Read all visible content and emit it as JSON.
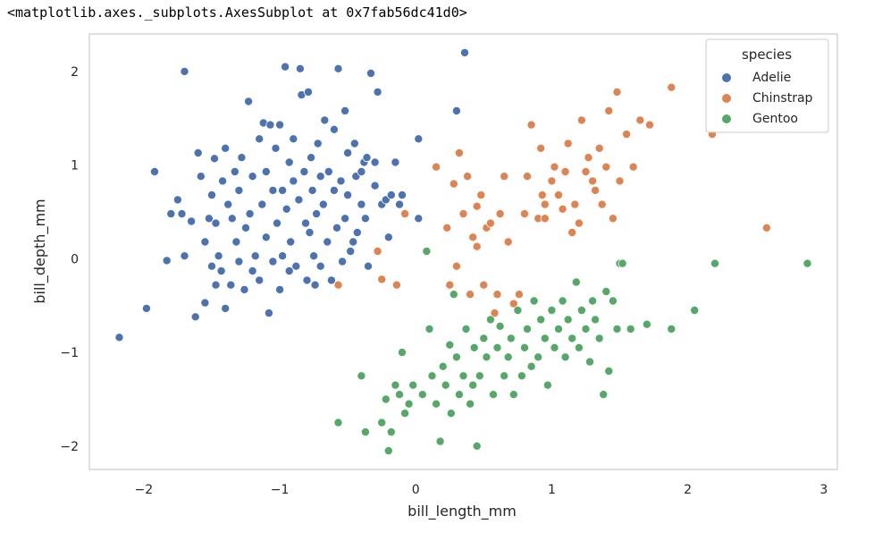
{
  "output_repr": "<matplotlib.axes._subplots.AxesSubplot at 0x7fab56dc41d0>",
  "chart_data": {
    "type": "scatter",
    "xlabel": "bill_length_mm",
    "ylabel": "bill_depth_mm",
    "xlim": [
      -2.4,
      3.1
    ],
    "ylim": [
      -2.25,
      2.4
    ],
    "xticks": [
      -2,
      -1,
      0,
      1,
      2,
      3
    ],
    "yticks": [
      -2,
      -1,
      0,
      1,
      2
    ],
    "xtick_labels": [
      "−2",
      "−1",
      "0",
      "1",
      "2",
      "3"
    ],
    "ytick_labels": [
      "−2",
      "−1",
      "0",
      "1",
      "2"
    ],
    "grid": false,
    "legend": {
      "title": "species",
      "placement": "top-right"
    },
    "colors": {
      "Adelie": "#4c72b0",
      "Chinstrap": "#dd8452",
      "Gentoo": "#55a868",
      "frame": "#cccccc"
    },
    "series": [
      {
        "name": "Adelie",
        "points": [
          [
            -2.18,
            -0.84
          ],
          [
            -1.98,
            -0.53
          ],
          [
            -1.92,
            0.93
          ],
          [
            -1.83,
            -0.02
          ],
          [
            -1.8,
            0.48
          ],
          [
            -1.75,
            0.63
          ],
          [
            -1.72,
            0.48
          ],
          [
            -1.7,
            2.0
          ],
          [
            -1.7,
            0.03
          ],
          [
            -1.65,
            0.4
          ],
          [
            -1.62,
            -0.62
          ],
          [
            -1.6,
            1.13
          ],
          [
            -1.58,
            0.88
          ],
          [
            -1.55,
            0.18
          ],
          [
            -1.55,
            -0.47
          ],
          [
            -1.52,
            0.43
          ],
          [
            -1.5,
            -0.08
          ],
          [
            -1.5,
            0.68
          ],
          [
            -1.48,
            1.07
          ],
          [
            -1.47,
            -0.28
          ],
          [
            -1.47,
            0.38
          ],
          [
            -1.45,
            0.03
          ],
          [
            -1.43,
            -0.13
          ],
          [
            -1.42,
            0.83
          ],
          [
            -1.4,
            1.18
          ],
          [
            -1.4,
            -0.53
          ],
          [
            -1.38,
            0.58
          ],
          [
            -1.36,
            -0.28
          ],
          [
            -1.35,
            0.43
          ],
          [
            -1.33,
            0.93
          ],
          [
            -1.32,
            0.18
          ],
          [
            -1.3,
            -0.03
          ],
          [
            -1.3,
            0.73
          ],
          [
            -1.28,
            1.08
          ],
          [
            -1.26,
            -0.33
          ],
          [
            -1.25,
            0.33
          ],
          [
            -1.23,
            1.68
          ],
          [
            -1.22,
            0.48
          ],
          [
            -1.2,
            0.88
          ],
          [
            -1.2,
            -0.13
          ],
          [
            -1.18,
            0.03
          ],
          [
            -1.15,
            -0.23
          ],
          [
            -1.15,
            1.28
          ],
          [
            -1.13,
            0.58
          ],
          [
            -1.12,
            1.45
          ],
          [
            -1.1,
            0.23
          ],
          [
            -1.1,
            0.93
          ],
          [
            -1.08,
            -0.58
          ],
          [
            -1.07,
            1.43
          ],
          [
            -1.05,
            0.73
          ],
          [
            -1.05,
            -0.03
          ],
          [
            -1.03,
            1.18
          ],
          [
            -1.02,
            0.38
          ],
          [
            -1.0,
            -0.33
          ],
          [
            -1.0,
            1.43
          ],
          [
            -0.98,
            0.73
          ],
          [
            -0.98,
            0.03
          ],
          [
            -0.96,
            2.05
          ],
          [
            -0.95,
            0.53
          ],
          [
            -0.93,
            1.03
          ],
          [
            -0.93,
            -0.13
          ],
          [
            -0.92,
            0.18
          ],
          [
            -0.9,
            0.83
          ],
          [
            -0.9,
            1.28
          ],
          [
            -0.88,
            -0.08
          ],
          [
            -0.86,
            0.63
          ],
          [
            -0.85,
            2.03
          ],
          [
            -0.84,
            1.75
          ],
          [
            -0.82,
            0.93
          ],
          [
            -0.81,
            0.38
          ],
          [
            -0.8,
            -0.23
          ],
          [
            -0.79,
            1.78
          ],
          [
            -0.78,
            0.28
          ],
          [
            -0.77,
            1.08
          ],
          [
            -0.76,
            0.73
          ],
          [
            -0.75,
            0.03
          ],
          [
            -0.74,
            -0.28
          ],
          [
            -0.73,
            0.48
          ],
          [
            -0.72,
            1.23
          ],
          [
            -0.7,
            0.88
          ],
          [
            -0.7,
            -0.08
          ],
          [
            -0.68,
            0.58
          ],
          [
            -0.67,
            1.48
          ],
          [
            -0.65,
            0.18
          ],
          [
            -0.64,
            0.93
          ],
          [
            -0.62,
            -0.23
          ],
          [
            -0.6,
            0.73
          ],
          [
            -0.6,
            1.38
          ],
          [
            -0.58,
            0.33
          ],
          [
            -0.57,
            2.03
          ],
          [
            -0.55,
            0.83
          ],
          [
            -0.54,
            -0.03
          ],
          [
            -0.52,
            1.58
          ],
          [
            -0.52,
            0.43
          ],
          [
            -0.5,
            1.13
          ],
          [
            -0.5,
            0.68
          ],
          [
            -0.48,
            0.08
          ],
          [
            -0.46,
            0.18
          ],
          [
            -0.45,
            1.23
          ],
          [
            -0.44,
            0.88
          ],
          [
            -0.43,
            0.28
          ],
          [
            -0.4,
            0.58
          ],
          [
            -0.4,
            0.93
          ],
          [
            -0.38,
            1.03
          ],
          [
            -0.37,
            0.43
          ],
          [
            -0.36,
            1.08
          ],
          [
            -0.35,
            -0.08
          ],
          [
            -0.33,
            1.98
          ],
          [
            -0.3,
            0.78
          ],
          [
            -0.3,
            1.03
          ],
          [
            -0.28,
            1.78
          ],
          [
            -0.25,
            0.58
          ],
          [
            -0.22,
            0.63
          ],
          [
            -0.2,
            0.23
          ],
          [
            -0.18,
            0.68
          ],
          [
            -0.15,
            1.03
          ],
          [
            -0.12,
            0.58
          ],
          [
            -0.1,
            0.68
          ],
          [
            0.02,
            1.28
          ],
          [
            0.02,
            0.43
          ],
          [
            0.3,
            1.58
          ],
          [
            0.36,
            2.2
          ]
        ]
      },
      {
        "name": "Chinstrap",
        "points": [
          [
            -0.57,
            -0.28
          ],
          [
            -0.28,
            0.08
          ],
          [
            -0.25,
            -0.22
          ],
          [
            -0.14,
            -0.28
          ],
          [
            -0.08,
            0.48
          ],
          [
            0.15,
            0.98
          ],
          [
            0.23,
            0.33
          ],
          [
            0.25,
            -0.28
          ],
          [
            0.28,
            0.8
          ],
          [
            0.3,
            -0.08
          ],
          [
            0.32,
            1.13
          ],
          [
            0.35,
            0.48
          ],
          [
            0.38,
            0.88
          ],
          [
            0.4,
            -0.38
          ],
          [
            0.42,
            0.23
          ],
          [
            0.45,
            0.13
          ],
          [
            0.45,
            0.56
          ],
          [
            0.48,
            0.68
          ],
          [
            0.5,
            -0.28
          ],
          [
            0.52,
            0.33
          ],
          [
            0.55,
            0.38
          ],
          [
            0.58,
            -0.58
          ],
          [
            0.6,
            -0.38
          ],
          [
            0.62,
            0.48
          ],
          [
            0.65,
            0.88
          ],
          [
            0.68,
            0.18
          ],
          [
            0.72,
            -0.48
          ],
          [
            0.76,
            -0.38
          ],
          [
            0.8,
            0.48
          ],
          [
            0.82,
            0.88
          ],
          [
            0.85,
            1.43
          ],
          [
            0.9,
            0.43
          ],
          [
            0.92,
            1.18
          ],
          [
            0.93,
            0.68
          ],
          [
            0.95,
            0.43
          ],
          [
            0.95,
            0.58
          ],
          [
            1.0,
            0.83
          ],
          [
            1.02,
            0.98
          ],
          [
            1.05,
            0.68
          ],
          [
            1.08,
            0.53
          ],
          [
            1.1,
            0.93
          ],
          [
            1.12,
            1.23
          ],
          [
            1.15,
            0.28
          ],
          [
            1.17,
            0.58
          ],
          [
            1.2,
            0.38
          ],
          [
            1.22,
            1.48
          ],
          [
            1.25,
            0.93
          ],
          [
            1.27,
            1.08
          ],
          [
            1.3,
            0.83
          ],
          [
            1.32,
            0.73
          ],
          [
            1.35,
            1.18
          ],
          [
            1.37,
            0.58
          ],
          [
            1.4,
            0.98
          ],
          [
            1.42,
            1.58
          ],
          [
            1.45,
            0.43
          ],
          [
            1.48,
            1.78
          ],
          [
            1.5,
            0.83
          ],
          [
            1.55,
            1.33
          ],
          [
            1.6,
            0.98
          ],
          [
            1.65,
            1.48
          ],
          [
            1.72,
            1.43
          ],
          [
            1.88,
            1.83
          ],
          [
            2.18,
            1.33
          ],
          [
            2.58,
            0.33
          ]
        ]
      },
      {
        "name": "Gentoo",
        "points": [
          [
            -0.57,
            -1.75
          ],
          [
            -0.4,
            -1.25
          ],
          [
            -0.37,
            -1.85
          ],
          [
            -0.25,
            -1.75
          ],
          [
            -0.22,
            -1.5
          ],
          [
            -0.2,
            -2.05
          ],
          [
            -0.18,
            -1.85
          ],
          [
            -0.15,
            -1.35
          ],
          [
            -0.12,
            -1.45
          ],
          [
            -0.1,
            -1.0
          ],
          [
            -0.08,
            -1.65
          ],
          [
            -0.05,
            -1.55
          ],
          [
            -0.02,
            -1.35
          ],
          [
            0.05,
            -1.45
          ],
          [
            0.08,
            0.08
          ],
          [
            0.1,
            -0.75
          ],
          [
            0.12,
            -1.25
          ],
          [
            0.15,
            -1.55
          ],
          [
            0.18,
            -1.95
          ],
          [
            0.2,
            -1.15
          ],
          [
            0.22,
            -1.35
          ],
          [
            0.25,
            -0.92
          ],
          [
            0.26,
            -1.65
          ],
          [
            0.28,
            -0.38
          ],
          [
            0.3,
            -1.05
          ],
          [
            0.32,
            -1.45
          ],
          [
            0.35,
            -1.25
          ],
          [
            0.37,
            -0.75
          ],
          [
            0.4,
            -1.55
          ],
          [
            0.42,
            -1.35
          ],
          [
            0.43,
            -0.95
          ],
          [
            0.45,
            -2.0
          ],
          [
            0.47,
            -1.25
          ],
          [
            0.5,
            -0.85
          ],
          [
            0.52,
            -1.05
          ],
          [
            0.55,
            -0.65
          ],
          [
            0.57,
            -1.45
          ],
          [
            0.6,
            -0.95
          ],
          [
            0.62,
            -0.72
          ],
          [
            0.65,
            -1.25
          ],
          [
            0.68,
            -1.05
          ],
          [
            0.7,
            -0.85
          ],
          [
            0.72,
            -1.45
          ],
          [
            0.75,
            -0.55
          ],
          [
            0.78,
            -1.25
          ],
          [
            0.8,
            -0.95
          ],
          [
            0.82,
            -0.75
          ],
          [
            0.85,
            -1.15
          ],
          [
            0.87,
            -0.45
          ],
          [
            0.9,
            -1.05
          ],
          [
            0.92,
            -0.65
          ],
          [
            0.95,
            -0.85
          ],
          [
            0.97,
            -1.35
          ],
          [
            1.0,
            -0.55
          ],
          [
            1.02,
            -0.95
          ],
          [
            1.05,
            -0.75
          ],
          [
            1.08,
            -0.45
          ],
          [
            1.1,
            -1.05
          ],
          [
            1.12,
            -0.65
          ],
          [
            1.15,
            -0.85
          ],
          [
            1.18,
            -0.25
          ],
          [
            1.2,
            -0.95
          ],
          [
            1.22,
            -0.55
          ],
          [
            1.25,
            -0.75
          ],
          [
            1.28,
            -1.1
          ],
          [
            1.3,
            -0.45
          ],
          [
            1.32,
            -0.65
          ],
          [
            1.35,
            -0.85
          ],
          [
            1.38,
            -1.45
          ],
          [
            1.4,
            -0.35
          ],
          [
            1.42,
            -1.2
          ],
          [
            1.45,
            -0.45
          ],
          [
            1.48,
            -0.75
          ],
          [
            1.5,
            -0.05
          ],
          [
            1.52,
            -0.05
          ],
          [
            1.58,
            -0.75
          ],
          [
            1.7,
            -0.7
          ],
          [
            1.88,
            -0.75
          ],
          [
            2.05,
            -0.55
          ],
          [
            2.2,
            -0.05
          ],
          [
            2.88,
            -0.05
          ]
        ]
      }
    ]
  }
}
